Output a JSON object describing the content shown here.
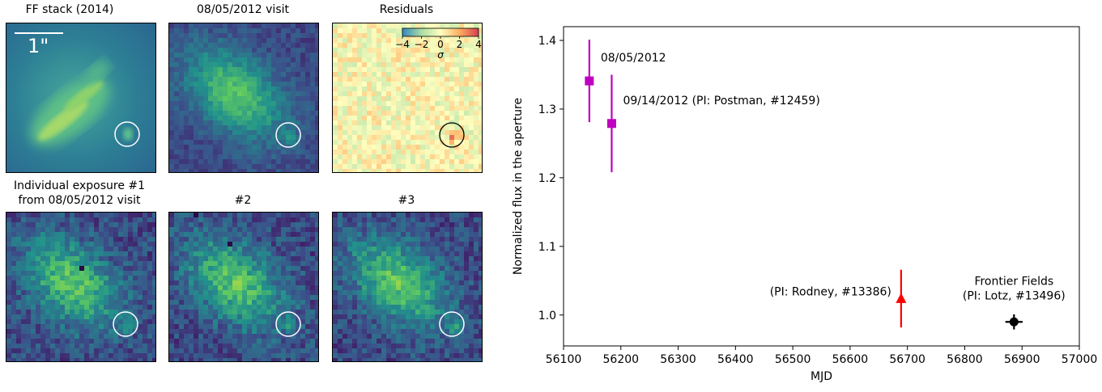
{
  "panels": {
    "ff_stack": {
      "title": "FF stack (2014)",
      "scalebar_label": "1\""
    },
    "visit": {
      "title": "08/05/2012 visit"
    },
    "residuals": {
      "title": "Residuals",
      "colorbar_ticks": [
        "−4",
        "−2",
        "0",
        "2",
        "4"
      ],
      "colorbar_label": "σ"
    },
    "exp1": {
      "title_line1": "Individual exposure #1",
      "title_line2": "from 08/05/2012 visit"
    },
    "exp2": {
      "title": "#2"
    },
    "exp3": {
      "title": "#3"
    }
  },
  "chart_data": {
    "type": "scatter",
    "xlabel": "MJD",
    "ylabel": "Normalized flux in the aperture",
    "xlim": [
      56100,
      57000
    ],
    "ylim": [
      0.955,
      1.42
    ],
    "xticks": [
      56100,
      56200,
      56300,
      56400,
      56500,
      56600,
      56700,
      56800,
      56900,
      57000
    ],
    "yticks": [
      1.0,
      1.1,
      1.2,
      1.3,
      1.4
    ],
    "ytick_labels": [
      "1.0",
      "1.1",
      "1.2",
      "1.3",
      "1.4"
    ],
    "points": [
      {
        "x": 56145,
        "y": 1.341,
        "yerr_low": 0.06,
        "yerr_high": 0.06,
        "marker": "square",
        "color": "#c000c0",
        "label": "08/05/2012"
      },
      {
        "x": 56184,
        "y": 1.279,
        "yerr_low": 0.071,
        "yerr_high": 0.071,
        "marker": "square",
        "color": "#c000c0",
        "label": "09/14/2012 (PI: Postman, #12459)"
      },
      {
        "x": 56689,
        "y": 1.024,
        "yerr_low": 0.042,
        "yerr_high": 0.042,
        "marker": "triangle",
        "color": "#ff0000",
        "label": "(PI: Rodney, #13386)"
      },
      {
        "x": 56886,
        "y": 0.99,
        "yerr_low": 0.011,
        "yerr_high": 0.011,
        "xerr": 15,
        "marker": "circle",
        "color": "#000000",
        "label_line1": "Frontier Fields",
        "label_line2": "(PI: Lotz, #13496)"
      }
    ]
  }
}
